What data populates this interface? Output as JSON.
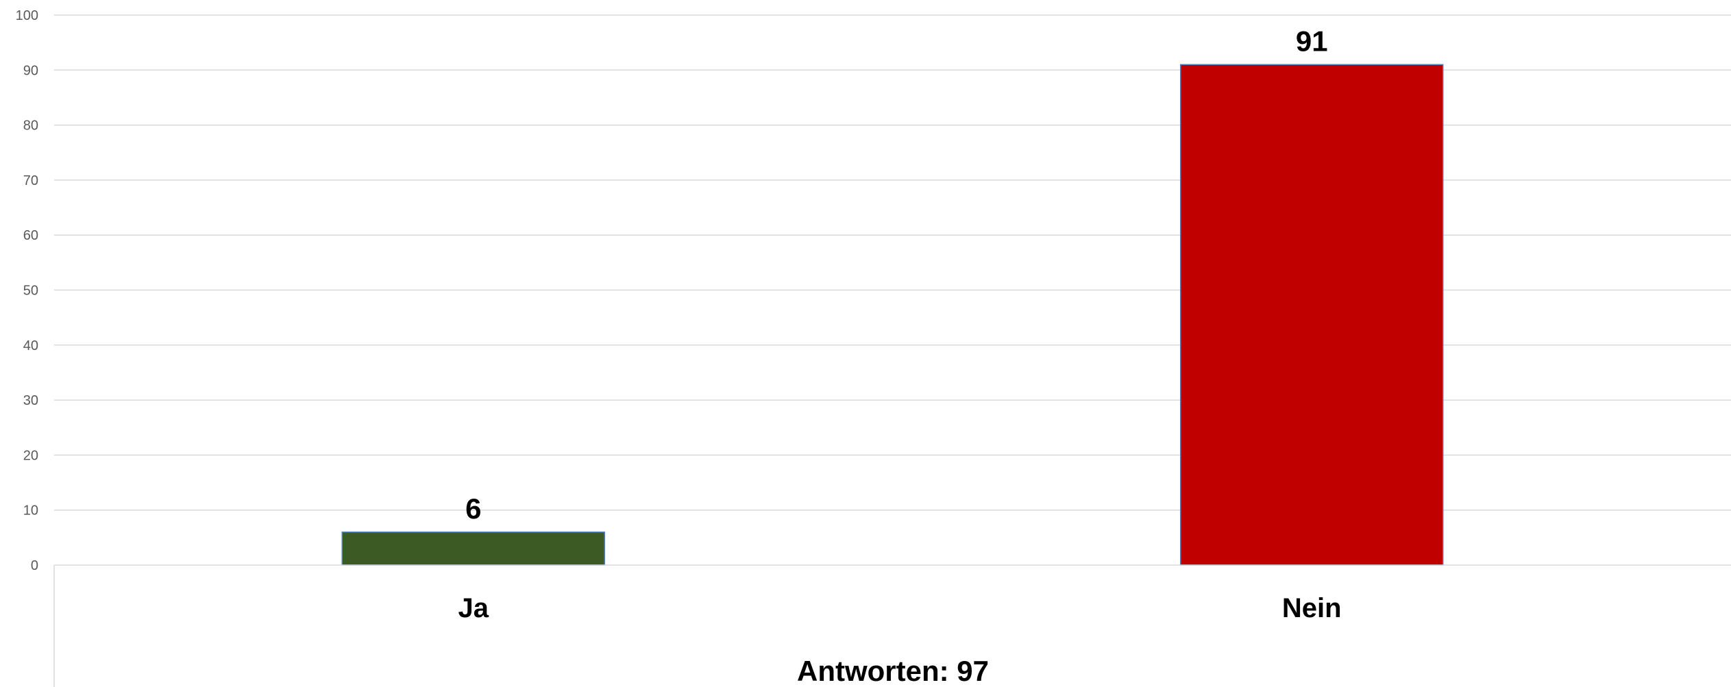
{
  "chart_data": {
    "type": "bar",
    "categories": [
      "Ja",
      "Nein"
    ],
    "values": [
      6,
      91
    ],
    "ylim": [
      0,
      100
    ],
    "yticks": [
      0,
      10,
      20,
      30,
      40,
      50,
      60,
      70,
      80,
      90,
      100
    ],
    "grid": true,
    "colors": [
      "#3b5a24",
      "#c00000"
    ],
    "bar_border_color": "#4f81bd",
    "gridline_color": "#d9d9d9",
    "data_labels": true,
    "footer": "Antworten: 97"
  }
}
